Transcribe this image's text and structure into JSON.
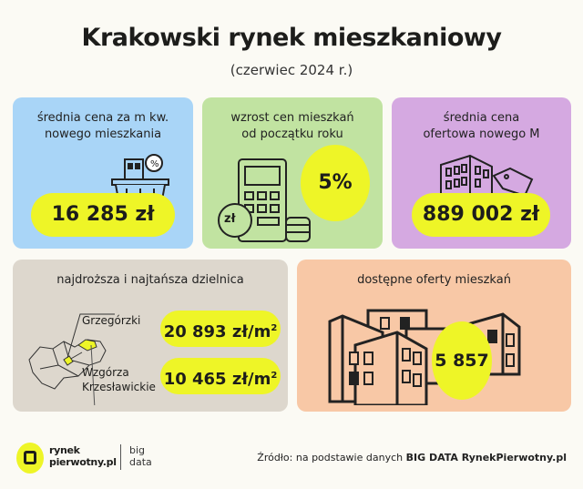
{
  "header": {
    "title": "Krakowski rynek mieszkaniowy",
    "subtitle": "(czerwiec 2024 r.)"
  },
  "colors": {
    "accent": "#eef527",
    "blue": "#a9d5f7",
    "green": "#c1e3a1",
    "purple": "#d5a9e1",
    "beige": "#ddd7cd",
    "peach": "#f8c8a6"
  },
  "cards": {
    "price_sqm": {
      "label_1": "średnia cena za m kw.",
      "label_2": "nowego mieszkania",
      "value": "16 285 zł",
      "icon": "basket-building-percent-icon"
    },
    "growth": {
      "label_1": "wzrost cen mieszkań",
      "label_2": "od początku roku",
      "value": "5%",
      "icon": "calculator-coins-icon",
      "coin": "zł"
    },
    "avg_price": {
      "label_1": "średnia cena",
      "label_2": "ofertowa nowego M",
      "value": "889 002 zł",
      "icon": "building-tag-icon"
    },
    "districts": {
      "label": "najdroższa i najtańsza dzielnica",
      "expensive_name": "Grzegórzki",
      "expensive_value": "20 893 zł/m",
      "cheap_name_1": "Wzgórza",
      "cheap_name_2": "Krzesławickie",
      "cheap_value": "10 465 zł/m",
      "sup": "2",
      "icon": "krakow-map-icon"
    },
    "offers": {
      "label": "dostępne oferty mieszkań",
      "value": "5 857",
      "icon": "buildings-icon"
    }
  },
  "footer": {
    "logo_1": "rynek",
    "logo_2": "pierwotny.pl",
    "logo_3": "big",
    "logo_4": "data",
    "source_prefix": "Źródło: na podstawie danych ",
    "source_bold": "BIG DATA RynekPierwotny.pl"
  }
}
